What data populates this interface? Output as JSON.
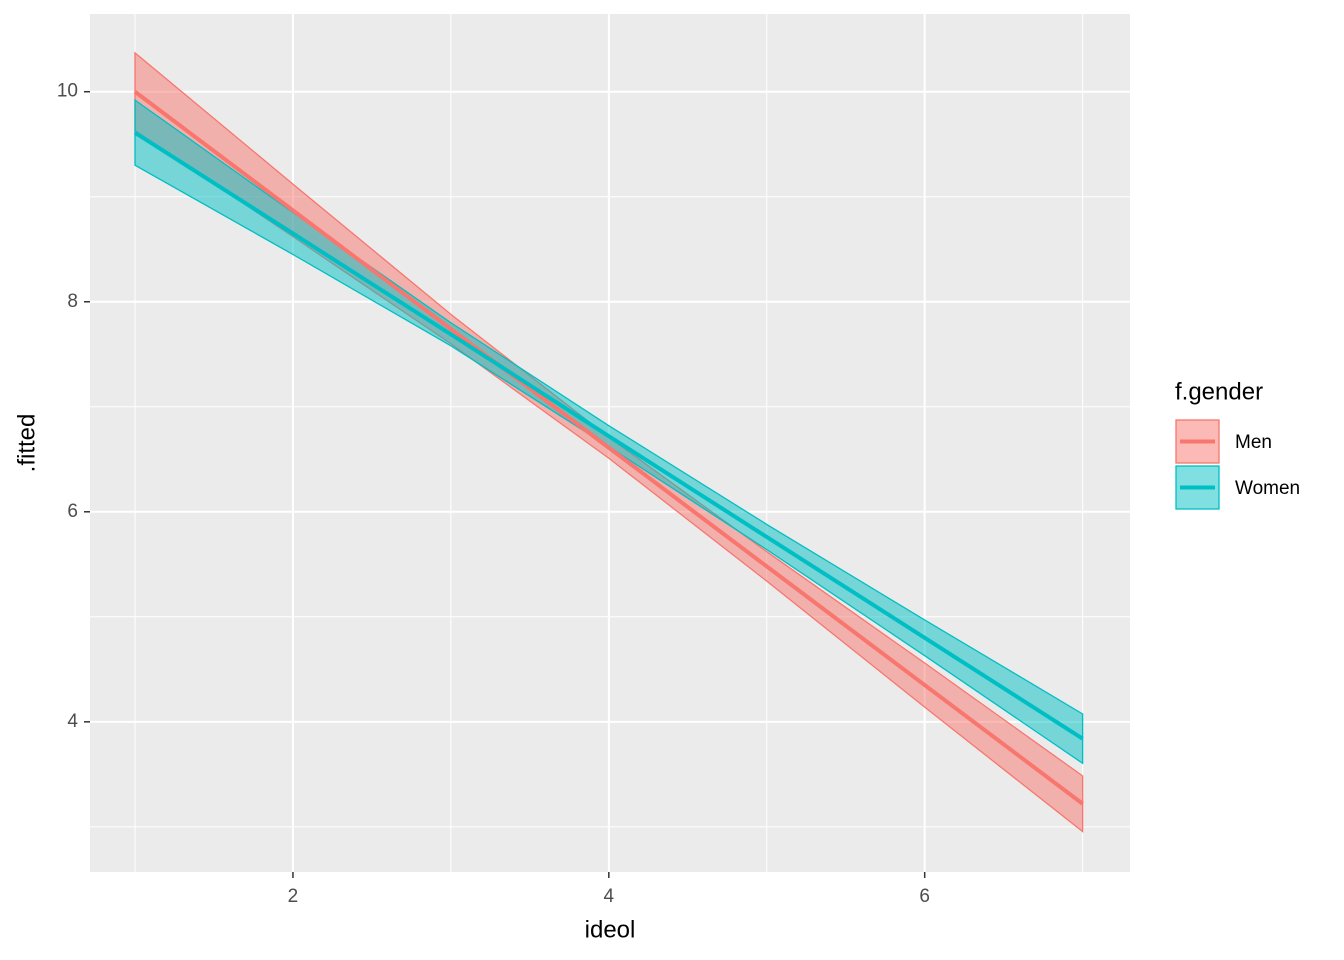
{
  "chart_data": {
    "type": "line",
    "x_label": "ideol",
    "y_label": ".fitted",
    "legend_title": "f.gender",
    "legend": "right",
    "x": [
      1,
      2,
      3,
      4,
      5,
      6,
      7
    ],
    "series": [
      {
        "name": "Men",
        "color": "#F8766D",
        "values": [
          10.0,
          8.87,
          7.74,
          6.61,
          5.48,
          4.35,
          3.22
        ],
        "lower": [
          9.63,
          8.62,
          7.6,
          6.51,
          5.34,
          4.14,
          2.955
        ],
        "upper": [
          10.37,
          9.12,
          7.88,
          6.71,
          5.62,
          4.56,
          3.485
        ]
      },
      {
        "name": "Women",
        "color": "#00BFC4",
        "values": [
          9.61,
          8.65,
          7.69,
          6.72,
          5.76,
          4.8,
          3.84
        ],
        "lower": [
          9.3,
          8.45,
          7.58,
          6.62,
          5.64,
          4.63,
          3.605
        ],
        "upper": [
          9.92,
          8.85,
          7.8,
          6.82,
          5.88,
          4.97,
          4.075
        ]
      }
    ],
    "ribbon_opacity": 0.5,
    "xlim": [
      0.715,
      7.3
    ],
    "xticks": [
      2,
      4,
      6
    ],
    "ylim": [
      2.57,
      10.74
    ],
    "yticks": [
      4,
      6,
      8,
      10
    ],
    "grid": true
  }
}
